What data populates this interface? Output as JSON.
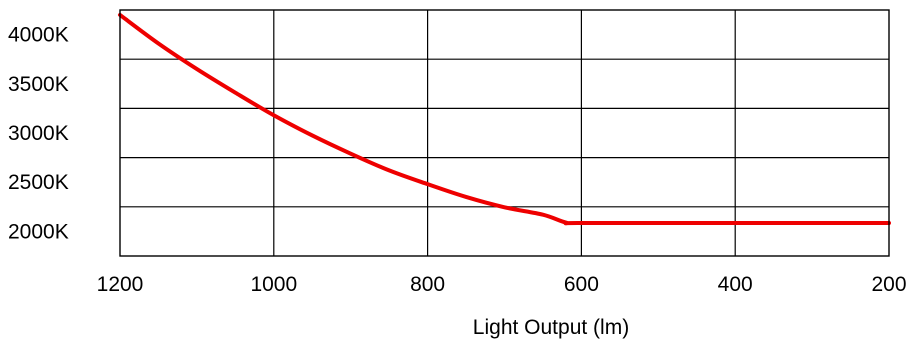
{
  "chart_data": {
    "type": "line",
    "title": "",
    "xlabel": "Light Output (lm)",
    "ylabel": "",
    "x_axis": {
      "direction": "reversed",
      "range": [
        1200,
        200
      ],
      "ticks": [
        1200,
        1000,
        800,
        600,
        400,
        200
      ],
      "tick_labels": [
        "1200",
        "1000",
        "800",
        "600",
        "400",
        "200"
      ]
    },
    "y_axis": {
      "range": [
        1750,
        4200
      ],
      "ticks": [
        2000,
        2500,
        3000,
        3500,
        4000
      ],
      "tick_labels": [
        "2000K",
        "2500K",
        "3000K",
        "3500K",
        "4000K"
      ],
      "gridlines": [
        2250,
        2750,
        3250,
        3750,
        4250
      ]
    },
    "grid": true,
    "legend": "none",
    "series": [
      {
        "color": "#ee0000",
        "points": [
          {
            "x": 1200,
            "y": 4200
          },
          {
            "x": 1150,
            "y": 3910
          },
          {
            "x": 1100,
            "y": 3650
          },
          {
            "x": 1050,
            "y": 3410
          },
          {
            "x": 1000,
            "y": 3180
          },
          {
            "x": 950,
            "y": 2975
          },
          {
            "x": 900,
            "y": 2790
          },
          {
            "x": 850,
            "y": 2620
          },
          {
            "x": 800,
            "y": 2480
          },
          {
            "x": 750,
            "y": 2350
          },
          {
            "x": 700,
            "y": 2245
          },
          {
            "x": 650,
            "y": 2170
          },
          {
            "x": 620,
            "y": 2090
          },
          {
            "x": 600,
            "y": 2085
          },
          {
            "x": 400,
            "y": 2085
          },
          {
            "x": 200,
            "y": 2085
          }
        ]
      }
    ]
  }
}
